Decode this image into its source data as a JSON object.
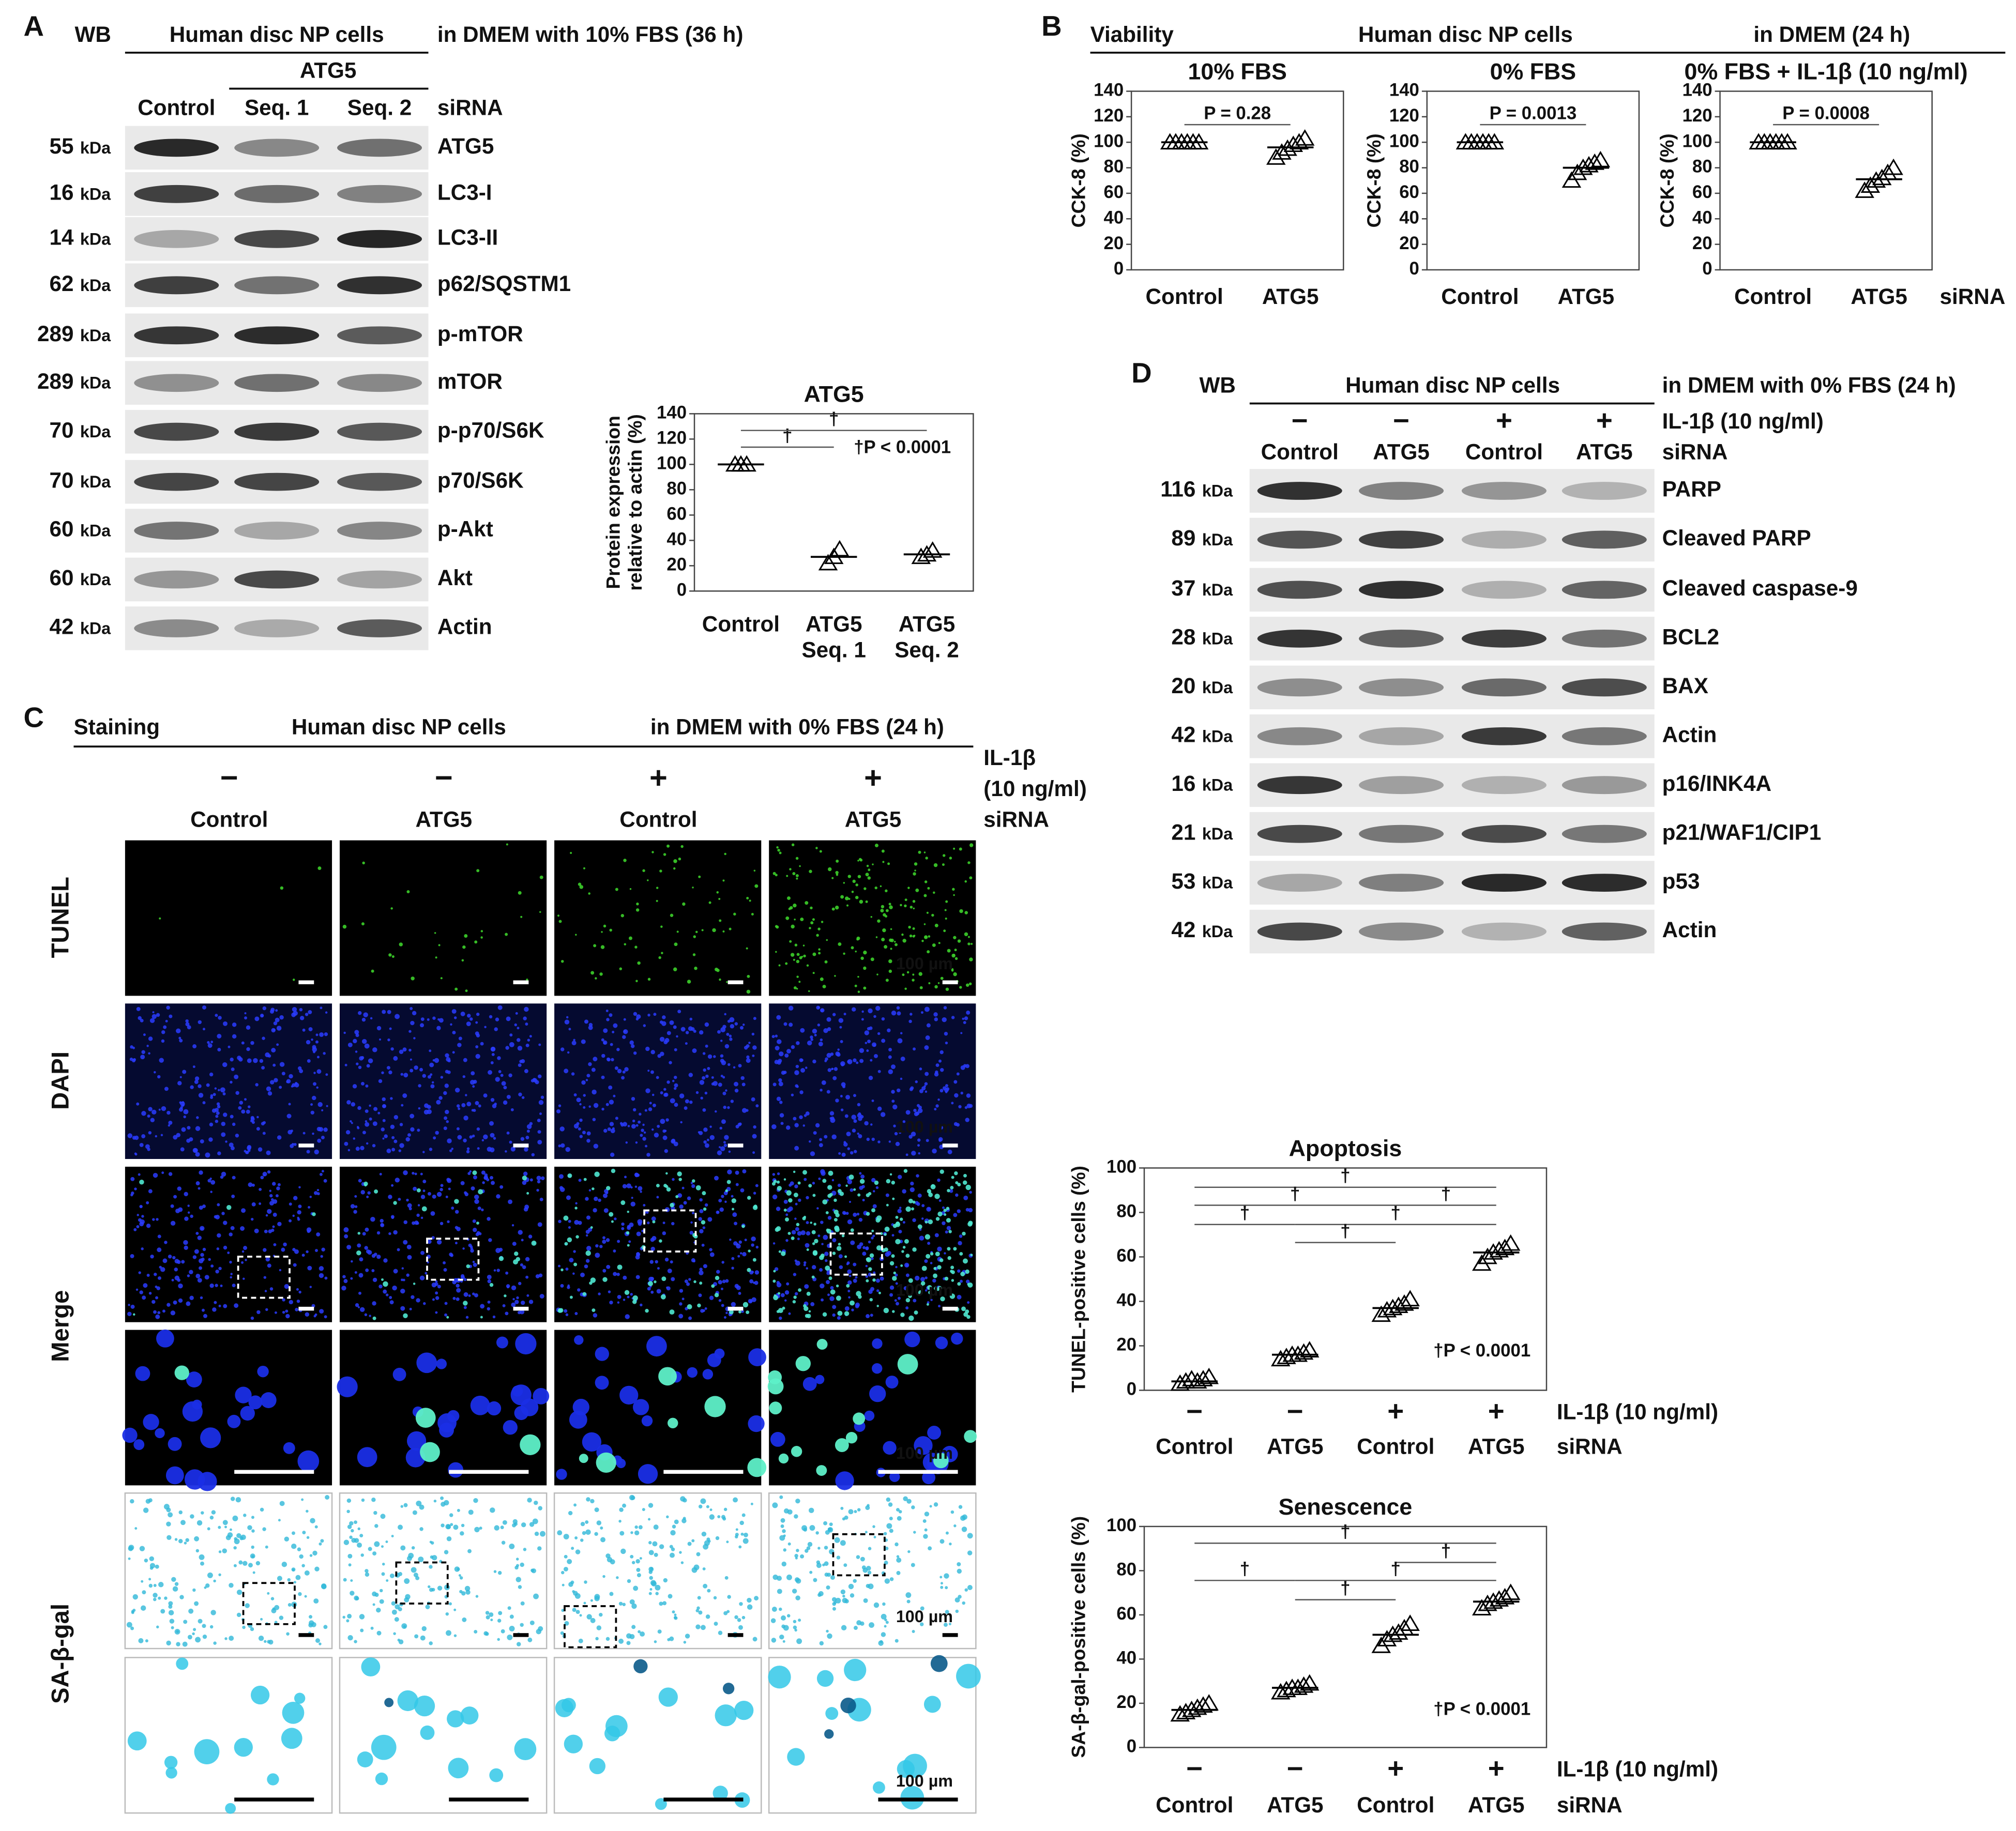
{
  "panel_a": {
    "label": "A",
    "wb": "WB",
    "cells": "Human disc NP cells",
    "condition": "in DMEM with 10% FBS (36 h)",
    "group": "ATG5",
    "lanes": [
      "Control",
      "Seq. 1",
      "Seq. 2"
    ],
    "lane_row": "siRNA",
    "blots": [
      {
        "weight": "55",
        "unit": "kDa",
        "protein": "ATG5"
      },
      {
        "weight": "16",
        "unit": "kDa",
        "protein": "LC3-I"
      },
      {
        "weight": "14",
        "unit": "kDa",
        "protein": "LC3-II"
      },
      {
        "weight": "62",
        "unit": "kDa",
        "protein": "p62/SQSTM1"
      },
      {
        "weight": "289",
        "unit": "kDa",
        "protein": "p-mTOR"
      },
      {
        "weight": "289",
        "unit": "kDa",
        "protein": "mTOR"
      },
      {
        "weight": "70",
        "unit": "kDa",
        "protein": "p-p70/S6K"
      },
      {
        "weight": "70",
        "unit": "kDa",
        "protein": "p70/S6K"
      },
      {
        "weight": "60",
        "unit": "kDa",
        "protein": "p-Akt"
      },
      {
        "weight": "60",
        "unit": "kDa",
        "protein": "Akt"
      },
      {
        "weight": "42",
        "unit": "kDa",
        "protein": "Actin"
      }
    ]
  },
  "panel_b": {
    "label": "B",
    "heading": "Viability",
    "cells": "Human disc NP cells",
    "condition": "in DMEM (24 h)",
    "row_label": "siRNA"
  },
  "panel_c": {
    "label": "C",
    "heading": "Staining",
    "cells": "Human disc NP cells",
    "condition": "in DMEM with 0% FBS (24 h)",
    "treatment_label": [
      "IL-1β",
      "(10 ng/ml)"
    ],
    "treatment": [
      "−",
      "−",
      "+",
      "+"
    ],
    "lanes": [
      "Control",
      "ATG5",
      "Control",
      "ATG5"
    ],
    "row_label": "siRNA",
    "stains": [
      "TUNEL",
      "DAPI",
      "Merge",
      "SA-β-gal"
    ],
    "scale_bar": "100 µm"
  },
  "panel_d": {
    "label": "D",
    "wb": "WB",
    "cells": "Human disc NP cells",
    "condition": "in DMEM with 0% FBS (24 h)",
    "treatment": [
      "−",
      "−",
      "+",
      "+"
    ],
    "treatment_label": "IL-1β (10 ng/ml)",
    "lanes": [
      "Control",
      "ATG5",
      "Control",
      "ATG5"
    ],
    "row_label": "siRNA",
    "blots": [
      {
        "weight": "116",
        "unit": "kDa",
        "protein": "PARP"
      },
      {
        "weight": "89",
        "unit": "kDa",
        "protein": "Cleaved PARP"
      },
      {
        "weight": "37",
        "unit": "kDa",
        "protein": "Cleaved caspase-9"
      },
      {
        "weight": "28",
        "unit": "kDa",
        "protein": "BCL2"
      },
      {
        "weight": "20",
        "unit": "kDa",
        "protein": "BAX"
      },
      {
        "weight": "42",
        "unit": "kDa",
        "protein": "Actin"
      },
      {
        "weight": "16",
        "unit": "kDa",
        "protein": "p16/INK4A"
      },
      {
        "weight": "21",
        "unit": "kDa",
        "protein": "p21/WAF1/CIP1"
      },
      {
        "weight": "53",
        "unit": "kDa",
        "protein": "p53"
      },
      {
        "weight": "42",
        "unit": "kDa",
        "protein": "Actin"
      }
    ]
  },
  "chart_data": [
    {
      "type": "dot",
      "title": "ATG5",
      "ylabel": [
        "Protein expression",
        "relative to actin (%)"
      ],
      "categories": [
        [
          "Control"
        ],
        [
          "ATG5",
          "Seq. 1"
        ],
        [
          "ATG5",
          "Seq. 2"
        ]
      ],
      "values": [
        [
          100,
          100,
          100
        ],
        [
          22,
          27,
          33
        ],
        [
          27,
          29,
          32
        ]
      ],
      "means": [
        100,
        27,
        29
      ],
      "color": "#000000",
      "ylim": [
        0,
        140
      ],
      "yticks": [
        0,
        20,
        40,
        60,
        80,
        100,
        120,
        140
      ],
      "brackets": [
        {
          "from": 0,
          "to": 1,
          "label": "†",
          "color": "#000000"
        },
        {
          "from": 0,
          "to": 2,
          "label": "†",
          "color": "#1f3aa8"
        }
      ],
      "annotation": "†P < 0.0001"
    },
    {
      "type": "dot",
      "title": "10% FBS",
      "ylabel": [
        "CCK-8 (%)"
      ],
      "categories": [
        "Control",
        "ATG5"
      ],
      "values": [
        [
          100,
          100,
          100,
          100,
          100,
          100
        ],
        [
          88,
          92,
          95,
          98,
          100,
          103
        ]
      ],
      "means": [
        100,
        96
      ],
      "color": "#000000",
      "ylim": [
        0,
        140
      ],
      "yticks": [
        0,
        20,
        40,
        60,
        80,
        100,
        120,
        140
      ],
      "brackets": [
        {
          "from": 0,
          "to": 1,
          "label": "P = 0.28",
          "color": "#000000"
        }
      ]
    },
    {
      "type": "dot",
      "title": "0% FBS",
      "ylabel": [
        "CCK-8 (%)"
      ],
      "categories": [
        "Control",
        "ATG5"
      ],
      "values": [
        [
          100,
          100,
          100,
          100,
          100,
          100
        ],
        [
          70,
          76,
          80,
          82,
          84,
          86
        ]
      ],
      "means": [
        100,
        80
      ],
      "color": "#000000",
      "ylim": [
        0,
        140
      ],
      "yticks": [
        0,
        20,
        40,
        60,
        80,
        100,
        120,
        140
      ],
      "brackets": [
        {
          "from": 0,
          "to": 1,
          "label": "P = 0.0013",
          "color": "#000000"
        }
      ]
    },
    {
      "type": "dot",
      "title": "0% FBS + IL-1β (10 ng/ml)",
      "ylabel": [
        "CCK-8 (%)"
      ],
      "categories": [
        "Control",
        "ATG5"
      ],
      "values": [
        [
          100,
          100,
          100,
          100,
          100,
          100
        ],
        [
          62,
          66,
          70,
          72,
          76,
          80
        ]
      ],
      "means": [
        100,
        71
      ],
      "color": "#000000",
      "ylim": [
        0,
        140
      ],
      "yticks": [
        0,
        20,
        40,
        60,
        80,
        100,
        120,
        140
      ],
      "brackets": [
        {
          "from": 0,
          "to": 1,
          "label": "P = 0.0008",
          "color": "#000000"
        }
      ]
    },
    {
      "type": "dot",
      "title": "Apoptosis",
      "ylabel": [
        "TUNEL-positive cells (%)"
      ],
      "treatment": [
        "−",
        "−",
        "+",
        "+"
      ],
      "treatment_label": "IL-1β (10 ng/ml)",
      "categories": [
        "Control",
        "ATG5",
        "Control",
        "ATG5"
      ],
      "category_label": "siRNA",
      "values": [
        [
          3,
          4,
          5,
          4,
          5,
          6
        ],
        [
          14,
          15,
          16,
          16,
          17,
          18
        ],
        [
          34,
          36,
          37,
          38,
          39,
          41
        ],
        [
          57,
          60,
          62,
          63,
          64,
          66
        ]
      ],
      "means": [
        4,
        16,
        37,
        62
      ],
      "color": "#000000",
      "ylim": [
        0,
        100
      ],
      "yticks": [
        0,
        20,
        40,
        60,
        80,
        100
      ],
      "brackets": [
        {
          "from": 0,
          "to": 3,
          "label": "†",
          "color": "#e36c09"
        },
        {
          "from": 0,
          "to": 2,
          "label": "†",
          "color": "#e36c09"
        },
        {
          "from": 2,
          "to": 3,
          "label": "†",
          "color": "#000000"
        },
        {
          "from": 0,
          "to": 1,
          "label": "†",
          "color": "#e36c09"
        },
        {
          "from": 1,
          "to": 3,
          "label": "†",
          "color": "#1f3aa8"
        },
        {
          "from": 1,
          "to": 2,
          "label": "†",
          "color": "#e36c09"
        }
      ],
      "annotation": "†P < 0.0001"
    },
    {
      "type": "dot",
      "title": "Senescence",
      "ylabel": [
        "SA-β-gal-positive cells (%)"
      ],
      "treatment": [
        "−",
        "−",
        "+",
        "+"
      ],
      "treatment_label": "IL-1β (10 ng/ml)",
      "categories": [
        "Control",
        "ATG5",
        "Control",
        "ATG5"
      ],
      "category_label": "siRNA",
      "values": [
        [
          15,
          16,
          17,
          18,
          19,
          20
        ],
        [
          25,
          26,
          27,
          27,
          28,
          29
        ],
        [
          46,
          49,
          51,
          52,
          54,
          56
        ],
        [
          63,
          65,
          66,
          67,
          68,
          70
        ]
      ],
      "means": [
        17,
        27,
        51,
        66
      ],
      "color": "#000000",
      "ylim": [
        0,
        100
      ],
      "yticks": [
        0,
        20,
        40,
        60,
        80,
        100
      ],
      "brackets": [
        {
          "from": 0,
          "to": 3,
          "label": "†",
          "color": "#000000"
        },
        {
          "from": 2,
          "to": 3,
          "label": "†",
          "color": "#1f3aa8"
        },
        {
          "from": 0,
          "to": 1,
          "label": "†",
          "color": "#000000"
        },
        {
          "from": 1,
          "to": 3,
          "label": "†",
          "color": "#e36c09"
        },
        {
          "from": 1,
          "to": 2,
          "label": "†",
          "color": "#1f3aa8"
        }
      ],
      "annotation": "†P < 0.0001"
    }
  ]
}
